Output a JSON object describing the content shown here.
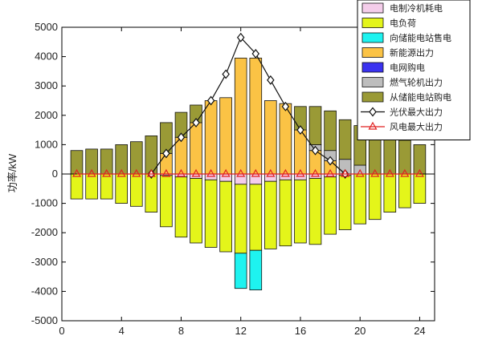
{
  "chart_data": {
    "type": "bar",
    "ylabel": "功率/kW",
    "xlabel": "",
    "xlim": [
      0,
      25
    ],
    "ylim": [
      -5000,
      5000
    ],
    "xticks": [
      0,
      4,
      8,
      12,
      16,
      20,
      24
    ],
    "yticks": [
      5000,
      4000,
      3000,
      2000,
      1000,
      0,
      -1000,
      -2000,
      -3000,
      -4000,
      -5000
    ],
    "x": [
      1,
      2,
      3,
      4,
      5,
      6,
      7,
      8,
      9,
      10,
      11,
      12,
      13,
      14,
      15,
      16,
      17,
      18,
      19,
      20,
      21,
      22,
      23,
      24
    ],
    "bar_series": [
      {
        "name": "电制冷机耗电",
        "color": "#f4cdea",
        "sign": "neg",
        "values": [
          0,
          0,
          0,
          0,
          0,
          0,
          50,
          100,
          150,
          200,
          250,
          350,
          350,
          250,
          200,
          200,
          150,
          100,
          50,
          0,
          0,
          0,
          0,
          0
        ]
      },
      {
        "name": "电负荷",
        "color": "#e4f51a",
        "sign": "neg",
        "values": [
          850,
          850,
          850,
          1000,
          1100,
          1300,
          1750,
          2050,
          2200,
          2300,
          2400,
          2350,
          2250,
          2300,
          2250,
          2150,
          2250,
          1950,
          1850,
          1700,
          1550,
          1300,
          1150,
          1000
        ]
      },
      {
        "name": "向储能电站售电",
        "color": "#1ef3f0",
        "sign": "neg",
        "values": [
          0,
          0,
          0,
          0,
          0,
          0,
          0,
          0,
          0,
          0,
          0,
          1200,
          1350,
          0,
          0,
          0,
          0,
          0,
          0,
          0,
          0,
          0,
          0,
          0
        ]
      },
      {
        "name": "新能源出力",
        "color": "#fbc345",
        "sign": "pos",
        "values": [
          0,
          0,
          0,
          0,
          0,
          0,
          700,
          1250,
          1750,
          2500,
          2600,
          3950,
          3950,
          2500,
          2400,
          1500,
          800,
          450,
          0,
          0,
          0,
          0,
          0,
          0
        ]
      },
      {
        "name": "电网购电",
        "color": "#3a32f0",
        "sign": "pos",
        "values": [
          0,
          0,
          0,
          0,
          0,
          0,
          0,
          0,
          0,
          0,
          0,
          0,
          0,
          0,
          0,
          0,
          0,
          0,
          0,
          0,
          0,
          0,
          0,
          0
        ]
      },
      {
        "name": "燃气轮机出力",
        "color": "#bdbdbd",
        "sign": "pos",
        "values": [
          0,
          0,
          0,
          0,
          0,
          0,
          0,
          0,
          0,
          0,
          0,
          0,
          0,
          0,
          0,
          0,
          200,
          350,
          500,
          300,
          0,
          0,
          0,
          0
        ]
      },
      {
        "name": "从储能电站购电",
        "color": "#9a9a36",
        "sign": "pos",
        "values": [
          800,
          850,
          850,
          1000,
          1100,
          1300,
          1050,
          850,
          600,
          0,
          0,
          0,
          0,
          0,
          0,
          800,
          1300,
          1350,
          1350,
          1350,
          1450,
          1300,
          1150,
          1000
        ]
      }
    ],
    "line_series": [
      {
        "name": "光伏最大出力",
        "color": "#111111",
        "marker": "diamond",
        "x": [
          6,
          7,
          8,
          9,
          10,
          11,
          12,
          13,
          14,
          15,
          16,
          17,
          18,
          19
        ],
        "values": [
          0,
          700,
          1250,
          1750,
          2500,
          3400,
          4650,
          4100,
          3200,
          2300,
          1500,
          800,
          450,
          0
        ]
      },
      {
        "name": "风电最大出力",
        "color": "#e02020",
        "marker": "triangle",
        "x": [
          1,
          2,
          3,
          4,
          5,
          6,
          7,
          8,
          9,
          10,
          11,
          12,
          13,
          14,
          15,
          16,
          17,
          18,
          19,
          20,
          21,
          22,
          23,
          24
        ],
        "values": [
          0,
          0,
          0,
          0,
          0,
          0,
          0,
          0,
          0,
          0,
          0,
          0,
          0,
          0,
          0,
          0,
          0,
          0,
          0,
          0,
          0,
          0,
          0,
          0
        ]
      }
    ],
    "legend_position": "top-right"
  }
}
